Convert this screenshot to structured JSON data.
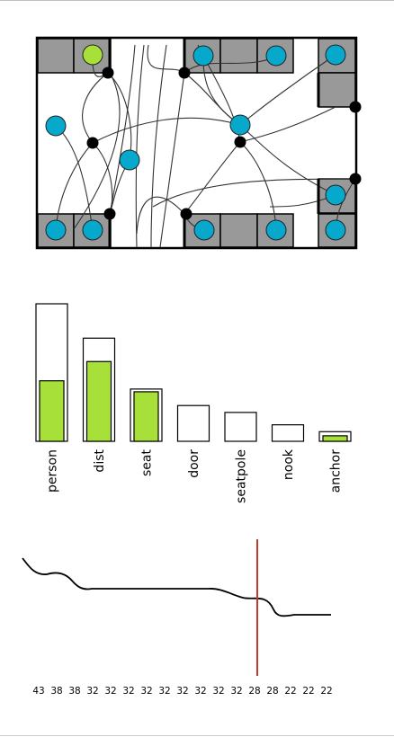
{
  "floor_plan": {
    "colors": {
      "cell": "#999999",
      "outline": "#000000",
      "occupied": "#06a9cc",
      "highlight": "#a8e03a",
      "connector": "#000000",
      "path": "#333333"
    }
  },
  "chart_data": [
    {
      "type": "bar",
      "categories": [
        "person",
        "dist",
        "seat",
        "door",
        "seatpole",
        "nook",
        "anchor"
      ],
      "series": [
        {
          "values": [
            100,
            75,
            38,
            26,
            21,
            12,
            7
          ]
        },
        {
          "values": [
            44,
            58,
            36,
            0,
            0,
            0,
            4
          ]
        }
      ],
      "ylim": [
        0,
        100
      ],
      "colors": {
        "outline": "#000000",
        "fill": "#a8e03a"
      }
    },
    {
      "type": "line",
      "x_tick_labels": [
        "43",
        "38",
        "38",
        "32",
        "32",
        "32",
        "32",
        "32",
        "32",
        "32",
        "32",
        "32",
        "28",
        "28",
        "22",
        "22",
        "22"
      ],
      "marker_index": 12,
      "colors": {
        "line": "#000000",
        "marker": "#c0392b"
      }
    }
  ]
}
